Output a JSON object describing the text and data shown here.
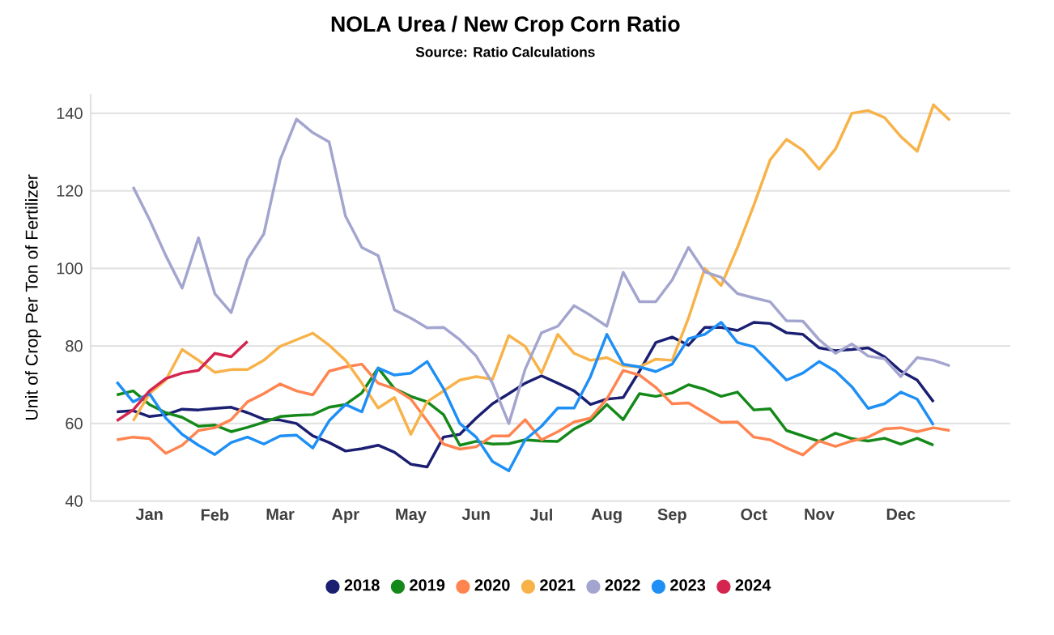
{
  "chart_data": {
    "type": "line",
    "title": "NOLA Urea / New Crop Corn Ratio",
    "subtitle": "Source: Ratio Calculations",
    "ylabel": "Unit of Crop Per Ton of Fertilizer",
    "categories": [
      null,
      null,
      "Jan",
      null,
      null,
      null,
      "Feb",
      null,
      null,
      null,
      "Mar",
      null,
      null,
      null,
      "Apr",
      null,
      null,
      null,
      "May",
      null,
      null,
      null,
      "Jun",
      null,
      null,
      null,
      "Jul",
      null,
      null,
      null,
      "Aug",
      null,
      null,
      null,
      "Sep",
      null,
      null,
      null,
      null,
      "Oct",
      null,
      null,
      null,
      "Nov",
      null,
      null,
      null,
      null,
      "Dec",
      null,
      null,
      null
    ],
    "ylim": [
      40,
      145
    ],
    "yticks": [
      40,
      60,
      80,
      100,
      120,
      140
    ],
    "grid": "y",
    "legend": "bottom",
    "series": [
      {
        "name": "2018",
        "color": "#1b1f72",
        "values": [
          63,
          63.3,
          61.8,
          62.3,
          63.7,
          63.5,
          63.9,
          64.2,
          62.8,
          61.1,
          60.9,
          60,
          56.8,
          55.1,
          52.9,
          53.5,
          54.4,
          52.6,
          49.5,
          48.8,
          56.5,
          57.2,
          61.4,
          65.1,
          67.7,
          70.4,
          72.3,
          70.4,
          68.4,
          64.9,
          66.3,
          66.7,
          73.5,
          80.9,
          82.3,
          80.2,
          84.8,
          84.8,
          84,
          86.1,
          85.8,
          83.4,
          83,
          79.5,
          78.8,
          79.1,
          79.5,
          77.2,
          73.5,
          71.2,
          65.6,
          null
        ]
      },
      {
        "name": "2019",
        "color": "#14891a",
        "values": [
          67.4,
          68.4,
          64.9,
          62.8,
          61.6,
          59.3,
          59.6,
          57.9,
          59,
          60.3,
          61.8,
          62.1,
          62.3,
          64.2,
          64.9,
          67.9,
          74.3,
          69,
          67,
          65.6,
          62.3,
          54.4,
          55.4,
          54.7,
          54.8,
          55.8,
          55.5,
          55.4,
          58.6,
          60.7,
          64.9,
          61,
          67.7,
          67,
          67.9,
          70,
          68.8,
          67,
          68.1,
          63.5,
          63.8,
          58.2,
          56.8,
          55.4,
          57.5,
          56.1,
          55.5,
          56.2,
          54.7,
          56.2,
          54.4,
          null
        ]
      },
      {
        "name": "2020",
        "color": "#ff8450",
        "values": [
          55.8,
          56.5,
          56.1,
          52.3,
          54.4,
          58.2,
          58.9,
          61,
          65.6,
          67.7,
          70.2,
          68.4,
          67.4,
          73.5,
          74.6,
          75.3,
          70.4,
          69,
          66.3,
          60.7,
          54.7,
          53.4,
          54,
          56.8,
          56.8,
          61,
          55.8,
          57.9,
          60.4,
          61.4,
          66.3,
          73.7,
          72.5,
          69.3,
          65.1,
          65.3,
          62.8,
          60.3,
          60.4,
          56.5,
          55.8,
          53.7,
          51.9,
          55.5,
          54.1,
          55.5,
          56.5,
          58.6,
          58.9,
          57.9,
          58.9,
          58.2
        ]
      },
      {
        "name": "2021",
        "color": "#f8b24a",
        "values": [
          null,
          60.7,
          67.7,
          71.2,
          79.1,
          76.3,
          73.2,
          73.9,
          73.9,
          76.3,
          79.9,
          81.6,
          83.3,
          80.2,
          76.3,
          70.4,
          64,
          66.7,
          57.2,
          65.6,
          68.4,
          71.2,
          72.1,
          71.4,
          82.7,
          79.9,
          73,
          83,
          78.1,
          76.3,
          77,
          74.9,
          74.6,
          76.6,
          76.3,
          87.2,
          100,
          95.6,
          105.4,
          116.3,
          128,
          133.3,
          130.5,
          125.6,
          130.8,
          140,
          140.7,
          138.9,
          134,
          130.2,
          142.2,
          138.2
        ]
      },
      {
        "name": "2022",
        "color": "#a3a5cf",
        "values": [
          null,
          121,
          112.6,
          103.3,
          94.9,
          107.9,
          93.5,
          88.6,
          102.3,
          108.9,
          128,
          138.5,
          135,
          132.6,
          113.5,
          105.4,
          103.3,
          89.3,
          87.2,
          84.7,
          84.8,
          81.6,
          77.4,
          70.4,
          60,
          74,
          83.4,
          85.1,
          90.4,
          87.9,
          85.1,
          99,
          91.4,
          91.4,
          97,
          105.4,
          99.1,
          97.7,
          93.5,
          92.4,
          91.4,
          86.5,
          86.4,
          81.6,
          78.1,
          80.5,
          77.4,
          76.7,
          72.1,
          77,
          76.3,
          74.9
        ]
      },
      {
        "name": "2023",
        "color": "#1e8ff5",
        "values": [
          70.7,
          65.6,
          67.7,
          61.4,
          57.2,
          54.4,
          52,
          55.1,
          56.5,
          54.7,
          56.8,
          57,
          53.7,
          60.7,
          64.9,
          63,
          74.3,
          72.5,
          73,
          76,
          69,
          60,
          56.5,
          50.2,
          47.8,
          55.8,
          59.3,
          64,
          64,
          72.1,
          83,
          75.3,
          74.6,
          73.4,
          75.3,
          81.9,
          83,
          86.1,
          80.9,
          79.8,
          75.6,
          71.2,
          73,
          76,
          73.5,
          69.5,
          63.9,
          65.1,
          68.1,
          66.3,
          59.6,
          null
        ]
      },
      {
        "name": "2024",
        "color": "#d4254f",
        "values": [
          60.7,
          63.5,
          68.4,
          71.6,
          73,
          73.7,
          78.1,
          77.2,
          81.2,
          null,
          null,
          null,
          null,
          null,
          null,
          null,
          null,
          null,
          null,
          null,
          null,
          null,
          null,
          null,
          null,
          null,
          null,
          null,
          null,
          null,
          null,
          null,
          null,
          null,
          null,
          null,
          null,
          null,
          null,
          null,
          null,
          null,
          null,
          null,
          null,
          null,
          null,
          null,
          null,
          null,
          null,
          null
        ]
      }
    ]
  }
}
